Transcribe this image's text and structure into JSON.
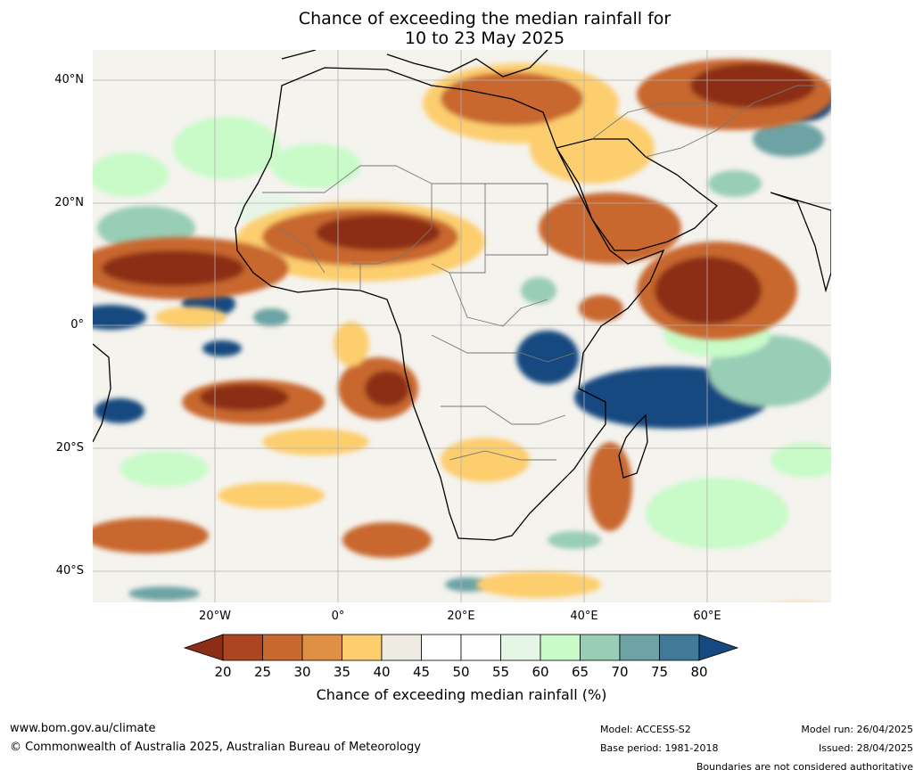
{
  "title": {
    "line1": "Chance of exceeding the median rainfall for",
    "line2": "10 to 23 May 2025"
  },
  "map": {
    "lat_labels": [
      "40°N",
      "20°N",
      "0°",
      "20°S",
      "40°S"
    ],
    "lon_labels": [
      "20°W",
      "0°",
      "20°E",
      "40°E",
      "60°E"
    ],
    "regions": {
      "dry_strong": "#8c2d16",
      "dry": "#c8682e",
      "dry_light": "#fdce6e",
      "neutral": "#eeebe3",
      "wet_light": "#c8fbc8",
      "wet": "#6da3a4",
      "wet_strong": "#144a80"
    }
  },
  "colorbar": {
    "ticks": [
      "20",
      "25",
      "30",
      "35",
      "40",
      "45",
      "50",
      "55",
      "60",
      "65",
      "70",
      "75",
      "80"
    ],
    "colors": [
      "#ad4522",
      "#c9682f",
      "#df9044",
      "#fdce6e",
      "#eeebe3",
      "#ffffff",
      "#ffffff",
      "#e6f6e6",
      "#c8fbc8",
      "#98cdb6",
      "#6da3a4",
      "#427898"
    ],
    "low_color": "#8c2d16",
    "high_color": "#144a80",
    "label": "Chance of exceeding median rainfall (%)"
  },
  "footer": {
    "website": "www.bom.gov.au/climate",
    "copyright": "© Commonwealth of Australia 2025, Australian Bureau of Meteorology",
    "model": "Model: ACCESS-S2",
    "base_period": "Base period: 1981-2018",
    "model_run": "Model run: 26/04/2025",
    "issued": "Issued: 28/04/2025",
    "disclaimer": "Boundaries are not considered authoritative"
  }
}
